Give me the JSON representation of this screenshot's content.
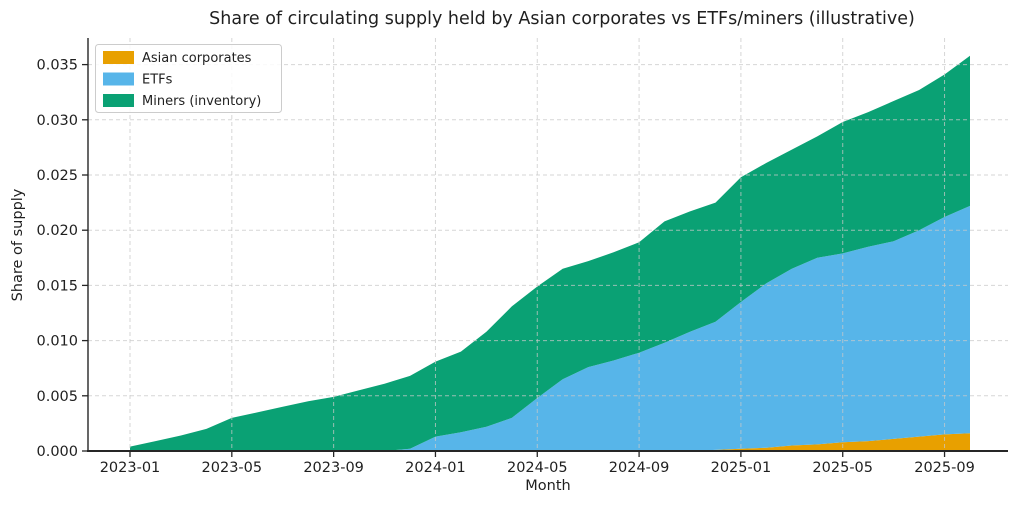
{
  "chart_data": {
    "type": "area",
    "stacked": true,
    "title": "Share of circulating supply held by Asian corporates vs ETFs/miners (illustrative)",
    "xlabel": "Month",
    "ylabel": "Share of supply",
    "categories": [
      "2023-01",
      "2023-02",
      "2023-03",
      "2023-04",
      "2023-05",
      "2023-06",
      "2023-07",
      "2023-08",
      "2023-09",
      "2023-10",
      "2023-11",
      "2023-12",
      "2024-01",
      "2024-02",
      "2024-03",
      "2024-04",
      "2024-05",
      "2024-06",
      "2024-07",
      "2024-08",
      "2024-09",
      "2024-10",
      "2024-11",
      "2024-12",
      "2025-01",
      "2025-02",
      "2025-03",
      "2025-04",
      "2025-05",
      "2025-06",
      "2025-07",
      "2025-08",
      "2025-09",
      "2025-10"
    ],
    "series": [
      {
        "name": "Asian corporates",
        "color": "#E8A000",
        "values": [
          0,
          0,
          0,
          0,
          0,
          0,
          0,
          0,
          0,
          0,
          0,
          0,
          0,
          0,
          0,
          0,
          0,
          0,
          0,
          0,
          0,
          0,
          0,
          0.0001,
          0.0002,
          0.0003,
          0.0005,
          0.0006,
          0.0008,
          0.0009,
          0.0011,
          0.0013,
          0.0015,
          0.0016
        ]
      },
      {
        "name": "ETFs",
        "color": "#57B5E9",
        "values": [
          0,
          0,
          0,
          0,
          0,
          0,
          0,
          0,
          0,
          0,
          0,
          0.0002,
          0.0013,
          0.0017,
          0.0022,
          0.003,
          0.0048,
          0.0065,
          0.0076,
          0.0082,
          0.0089,
          0.0098,
          0.0108,
          0.0116,
          0.0133,
          0.0149,
          0.016,
          0.0169,
          0.0171,
          0.0176,
          0.0179,
          0.0187,
          0.0197,
          0.0206
        ]
      },
      {
        "name": "Miners (inventory)",
        "color": "#0AA174",
        "values": [
          0.0004,
          0.0009,
          0.0014,
          0.002,
          0.003,
          0.0035,
          0.004,
          0.0045,
          0.0049,
          0.0055,
          0.0061,
          0.0066,
          0.0068,
          0.0073,
          0.0086,
          0.0101,
          0.0101,
          0.01,
          0.0096,
          0.0098,
          0.01,
          0.011,
          0.0109,
          0.0108,
          0.0113,
          0.0109,
          0.0108,
          0.011,
          0.0119,
          0.0122,
          0.0127,
          0.0127,
          0.0129,
          0.0136
        ]
      }
    ],
    "ylim": [
      0,
      0.0374
    ],
    "yticks": [
      0,
      0.005,
      0.01,
      0.015,
      0.02,
      0.025,
      0.03,
      0.035
    ],
    "ytick_labels": [
      "0.000",
      "0.005",
      "0.010",
      "0.015",
      "0.020",
      "0.025",
      "0.030",
      "0.035"
    ],
    "xtick_indices": [
      0,
      4,
      8,
      12,
      16,
      20,
      24,
      28,
      32
    ],
    "grid": "dashed-both",
    "legend_position": "upper-left"
  },
  "colors": {
    "background": "#ffffff",
    "text": "#1f1f1f",
    "grid": "#c9c9c9",
    "spine": "#262626",
    "legend_border": "#cccccc",
    "legend_bg": "#ffffff"
  }
}
